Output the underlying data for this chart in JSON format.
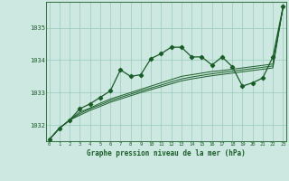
{
  "title": "Graphe pression niveau de la mer (hPa)",
  "hours": [
    0,
    1,
    2,
    3,
    4,
    5,
    6,
    7,
    8,
    9,
    10,
    11,
    12,
    13,
    14,
    15,
    16,
    17,
    18,
    19,
    20,
    21,
    22,
    23
  ],
  "x_labels": [
    "0",
    "1",
    "2",
    "3",
    "4",
    "5",
    "6",
    "7",
    "8",
    "9",
    "10",
    "11",
    "12",
    "13",
    "14",
    "15",
    "16",
    "17",
    "18",
    "19",
    "20",
    "21",
    "22",
    "23"
  ],
  "series_main": [
    1031.55,
    1031.9,
    1032.15,
    1032.5,
    1032.65,
    1032.85,
    1033.05,
    1033.7,
    1033.5,
    1033.55,
    1034.05,
    1034.2,
    1034.4,
    1034.4,
    1034.1,
    1034.1,
    1033.85,
    1034.1,
    1033.8,
    1033.2,
    1033.3,
    1033.45,
    1034.1,
    1035.65
  ],
  "series_line1": [
    1031.55,
    1031.9,
    1032.15,
    1032.4,
    1032.52,
    1032.67,
    1032.8,
    1032.9,
    1033.0,
    1033.1,
    1033.2,
    1033.3,
    1033.4,
    1033.5,
    1033.55,
    1033.6,
    1033.65,
    1033.68,
    1033.72,
    1033.76,
    1033.8,
    1033.84,
    1033.88,
    1035.65
  ],
  "series_line2": [
    1031.55,
    1031.9,
    1032.15,
    1032.35,
    1032.5,
    1032.62,
    1032.75,
    1032.85,
    1032.95,
    1033.05,
    1033.14,
    1033.23,
    1033.33,
    1033.42,
    1033.48,
    1033.53,
    1033.58,
    1033.62,
    1033.66,
    1033.7,
    1033.74,
    1033.78,
    1033.82,
    1035.65
  ],
  "series_line3": [
    1031.55,
    1031.9,
    1032.15,
    1032.3,
    1032.45,
    1032.57,
    1032.7,
    1032.8,
    1032.9,
    1033.0,
    1033.09,
    1033.18,
    1033.27,
    1033.36,
    1033.42,
    1033.47,
    1033.52,
    1033.56,
    1033.6,
    1033.64,
    1033.68,
    1033.72,
    1033.76,
    1035.65
  ],
  "ylim": [
    1031.5,
    1035.8
  ],
  "yticks": [
    1032,
    1033,
    1034,
    1035
  ],
  "bg_color": "#cce8e0",
  "grid_color": "#99ccbb",
  "line_color": "#1a5c28",
  "title_color": "#1a5c28",
  "label_color": "#1a5c28"
}
